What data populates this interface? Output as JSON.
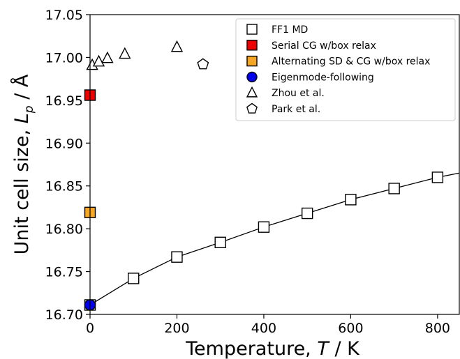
{
  "chart_data": {
    "type": "scatter",
    "xlabel": {
      "pre": "Temperature, ",
      "sym": "T",
      "post": " / K"
    },
    "ylabel": {
      "pre": "Unit cell size, ",
      "sym": "L",
      "sub": "p",
      "post": " / Å"
    },
    "xlim": [
      0,
      850
    ],
    "ylim": [
      16.7,
      17.05
    ],
    "xticks": [
      0,
      200,
      400,
      600,
      800
    ],
    "yticks": [
      16.7,
      16.75,
      16.8,
      16.85,
      16.9,
      16.95,
      17.0,
      17.05
    ],
    "grid": false,
    "legend_position": "top-right",
    "series": [
      {
        "name": "FF1 MD",
        "marker": "square",
        "fill": "#ffffff",
        "line": true,
        "points": [
          [
            0,
            16.711
          ],
          [
            100,
            16.742
          ],
          [
            200,
            16.767
          ],
          [
            300,
            16.784
          ],
          [
            400,
            16.802
          ],
          [
            500,
            16.818
          ],
          [
            600,
            16.834
          ],
          [
            700,
            16.847
          ],
          [
            800,
            16.86
          ]
        ],
        "line_extends_to": [
          850,
          16.865
        ]
      },
      {
        "name": "Serial CG w/box relax",
        "marker": "square",
        "fill": "#ee0000",
        "line": false,
        "points": [
          [
            0,
            16.956
          ]
        ]
      },
      {
        "name": "Alternating SD & CG w/box relax",
        "marker": "square",
        "fill": "#f5a623",
        "line": false,
        "points": [
          [
            0,
            16.819
          ]
        ]
      },
      {
        "name": "Eigenmode-following",
        "marker": "circle",
        "fill": "#0000ee",
        "line": false,
        "points": [
          [
            0,
            16.711
          ]
        ]
      },
      {
        "name": "Zhou et al.",
        "marker": "triangle",
        "fill": "#ffffff",
        "line": false,
        "points": [
          [
            5,
            16.991
          ],
          [
            20,
            16.995
          ],
          [
            40,
            16.999
          ],
          [
            80,
            17.004
          ],
          [
            200,
            17.012
          ]
        ]
      },
      {
        "name": "Park et al.",
        "marker": "pentagon",
        "fill": "#ffffff",
        "line": false,
        "points": [
          [
            260,
            16.992
          ]
        ]
      }
    ]
  }
}
